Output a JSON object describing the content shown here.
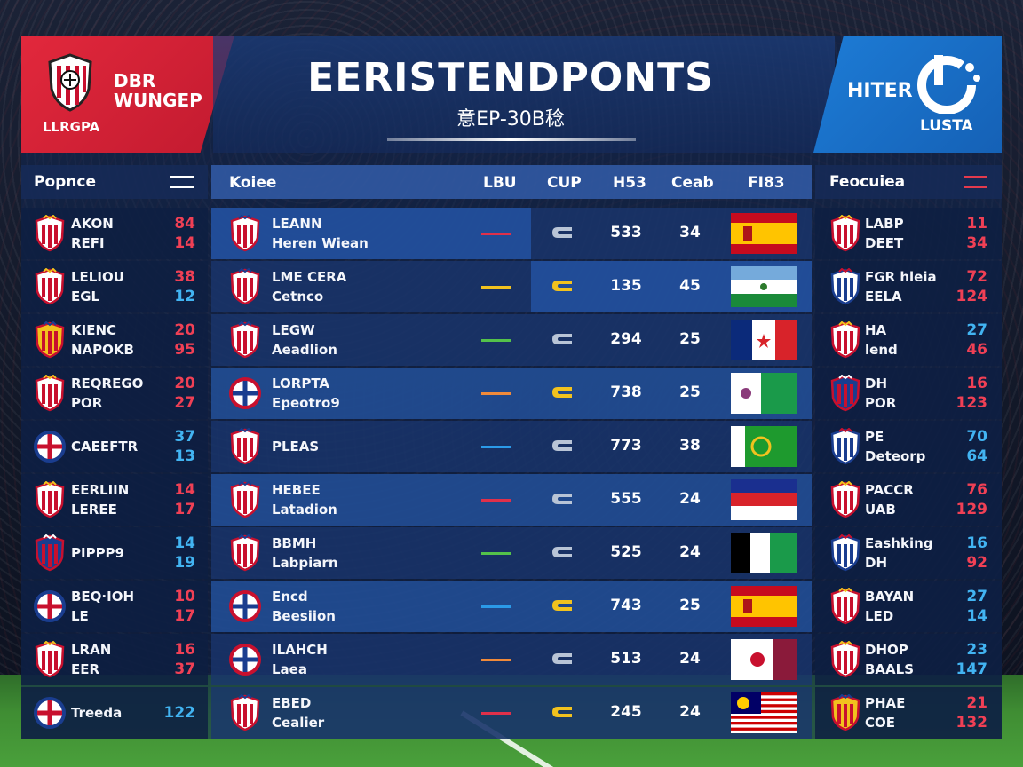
{
  "header": {
    "title": "EERISTENDPONTS",
    "subtitle": "意EP-30B稔",
    "left": {
      "name_line1": "DBR",
      "name_line2": "WUNGEP",
      "league": "LLRGPA"
    },
    "right": {
      "name": "HITER",
      "league": "LUSTA"
    }
  },
  "panels": {
    "left_header": "Popnce",
    "right_header": "Feocuiea",
    "mid_header": {
      "team": "Koiee",
      "c1": "LBU",
      "c2": "CUP",
      "c3": "H53",
      "c4": "Ceab",
      "c5": "FI83"
    }
  },
  "left_rows": [
    {
      "l1": "AKON",
      "l2": "REFI",
      "n1": "84",
      "n2": "14",
      "c1": "red",
      "c2": "red"
    },
    {
      "l1": "LELIOU",
      "l2": "EGL",
      "n1": "38",
      "n2": "12",
      "c1": "red",
      "c2": "blue"
    },
    {
      "l1": "KIENC",
      "l2": "NAPOKB",
      "n1": "20",
      "n2": "95",
      "c1": "red",
      "c2": "red"
    },
    {
      "l1": "REQREGO",
      "l2": "POR",
      "n1": "20",
      "n2": "27",
      "c1": "red",
      "c2": "red"
    },
    {
      "l1": "CAEEFTR",
      "l2": "",
      "n1": "37",
      "n2": "13",
      "c1": "blue",
      "c2": "blue"
    },
    {
      "l1": "EERLIIN",
      "l2": "LEREE",
      "n1": "14",
      "n2": "17",
      "c1": "red",
      "c2": "red"
    },
    {
      "l1": "PIPPP9",
      "l2": "",
      "n1": "14",
      "n2": "19",
      "c1": "blue",
      "c2": "blue"
    },
    {
      "l1": "BEQ·IOH",
      "l2": "LE",
      "n1": "10",
      "n2": "17",
      "c1": "red",
      "c2": "red"
    },
    {
      "l1": "LRAN",
      "l2": "EER",
      "n1": "16",
      "n2": "37",
      "c1": "red",
      "c2": "red"
    },
    {
      "l1": "Treeda",
      "l2": "",
      "n1": "122",
      "n2": "",
      "c1": "blue",
      "c2": "blue"
    }
  ],
  "mid_rows": [
    {
      "t1": "LEANN",
      "t2": "Heren Wiean",
      "dash": "#e0304a",
      "cup": "#b8c4d6",
      "s1": "533",
      "s2": "34",
      "flag": "spain"
    },
    {
      "t1": "LME CERA",
      "t2": "Cetnco",
      "dash": "#f2c21e",
      "cup": "#f2c21e",
      "s1": "135",
      "s2": "45",
      "flag": "argentina"
    },
    {
      "t1": "LEGW",
      "t2": "Aeadlion",
      "dash": "#54c24a",
      "cup": "#b8c4d6",
      "s1": "294",
      "s2": "25",
      "flag": "blue-red"
    },
    {
      "t1": "LORPTA",
      "t2": "Epeotro9",
      "dash": "#f08a3a",
      "cup": "#f2c21e",
      "s1": "738",
      "s2": "25",
      "flag": "white-green"
    },
    {
      "t1": "PLEAS",
      "t2": "",
      "dash": "#2b9ae8",
      "cup": "#b8c4d6",
      "s1": "773",
      "s2": "38",
      "flag": "green"
    },
    {
      "t1": "HEBEE",
      "t2": "Latadion",
      "dash": "#e0304a",
      "cup": "#b8c4d6",
      "s1": "555",
      "s2": "24",
      "flag": "red-white"
    },
    {
      "t1": "BBMH",
      "t2": "Labpiarn",
      "dash": "#54c24a",
      "cup": "#b8c4d6",
      "s1": "525",
      "s2": "24",
      "flag": "nigeria"
    },
    {
      "t1": "Encd",
      "t2": "Beesiion",
      "dash": "#2b9ae8",
      "cup": "#f2c21e",
      "s1": "743",
      "s2": "25",
      "flag": "spain"
    },
    {
      "t1": "ILAHCH",
      "t2": "Laea",
      "dash": "#f08a3a",
      "cup": "#b8c4d6",
      "s1": "513",
      "s2": "24",
      "flag": "white-maroon"
    },
    {
      "t1": "EBED",
      "t2": "Cealier",
      "dash": "#e0304a",
      "cup": "#f2c21e",
      "s1": "245",
      "s2": "24",
      "flag": "malaysia"
    }
  ],
  "right_rows": [
    {
      "l1": "LABP",
      "l2": "DEET",
      "n1": "11",
      "n2": "34",
      "c1": "red",
      "c2": "red"
    },
    {
      "l1": "FGR hleia",
      "l2": "EELA",
      "n1": "72",
      "n2": "124",
      "c1": "red",
      "c2": "red"
    },
    {
      "l1": "HA",
      "l2": "lend",
      "n1": "27",
      "n2": "46",
      "c1": "blue",
      "c2": "red"
    },
    {
      "l1": "DH",
      "l2": "POR",
      "n1": "16",
      "n2": "123",
      "c1": "red",
      "c2": "red"
    },
    {
      "l1": "PE",
      "l2": "Deteorp",
      "n1": "70",
      "n2": "64",
      "c1": "blue",
      "c2": "blue"
    },
    {
      "l1": "PACCR",
      "l2": "UAB",
      "n1": "76",
      "n2": "129",
      "c1": "red",
      "c2": "red"
    },
    {
      "l1": "Eashking",
      "l2": "DH",
      "n1": "16",
      "n2": "92",
      "c1": "blue",
      "c2": "red"
    },
    {
      "l1": "BAYAN",
      "l2": "LED",
      "n1": "27",
      "n2": "14",
      "c1": "blue",
      "c2": "blue"
    },
    {
      "l1": "DHOP",
      "l2": "BAALS",
      "n1": "23",
      "n2": "147",
      "c1": "blue",
      "c2": "blue"
    },
    {
      "l1": "PHAE",
      "l2": "COE",
      "n1": "21",
      "n2": "132",
      "c1": "red",
      "c2": "red"
    }
  ],
  "colors": {
    "accent_red": "#e2283c",
    "accent_blue": "#1d7cd6",
    "num_red": "#f04055",
    "num_blue": "#42b4f2"
  },
  "icons": [
    "team-crest-icon",
    "league-logo-icon",
    "menu-icon",
    "cup-icon",
    "flag-icon"
  ]
}
